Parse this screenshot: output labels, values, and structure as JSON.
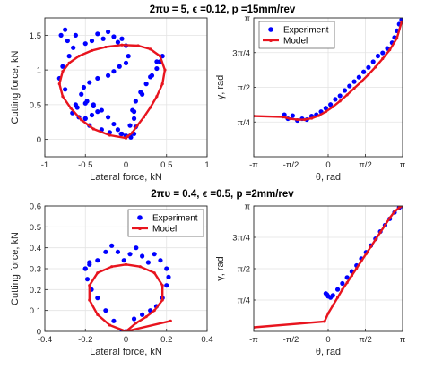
{
  "colors": {
    "experiment": "#0000ff",
    "model": "#e8141e",
    "grid": "#e3e3e3",
    "axis": "#262626"
  },
  "titles": [
    "2πυ = 5,  ϵ =0.12,  p =15mm/rev",
    "2πυ = 0.4,  ϵ =0.5,  p =2mm/rev"
  ],
  "chart_data": [
    {
      "type": "line",
      "xlabel": "Lateral force, kN",
      "ylabel": "Cutting force, kN",
      "xlim": [
        -1,
        1
      ],
      "ylim": [
        -0.25,
        1.75
      ],
      "xticks": [
        -1,
        -0.5,
        0,
        0.5,
        1
      ],
      "xticklabels": [
        "-1",
        "-0.5",
        "0",
        "0.5",
        "1"
      ],
      "yticks": [
        0,
        0.5,
        1,
        1.5
      ],
      "yticklabels": [
        "0",
        "0.5",
        "1",
        "1.5"
      ],
      "grid": true,
      "legend": null,
      "series": [
        {
          "name": "Experiment",
          "style": "dots",
          "x": [
            0.05,
            -0.05,
            -0.2,
            -0.3,
            -0.45,
            -0.5,
            -0.62,
            -0.75,
            -0.82,
            -0.78,
            -0.7,
            -0.65,
            -0.72,
            -0.8,
            -0.75,
            -0.62,
            -0.5,
            -0.42,
            -0.35,
            -0.28,
            -0.22,
            -0.15,
            -0.1,
            -0.05,
            0.0,
            0.03,
            0.0,
            -0.08,
            -0.15,
            -0.22,
            -0.35,
            -0.45,
            -0.52,
            -0.55,
            -0.48,
            -0.4,
            -0.35,
            -0.42,
            -0.5,
            -0.58,
            -0.66,
            -0.6,
            -0.5,
            -0.4,
            -0.3,
            -0.22,
            -0.15,
            -0.1,
            -0.06,
            0.0,
            0.06,
            0.1,
            0.12,
            0.1,
            0.08,
            0.12,
            0.18,
            0.25,
            0.32,
            0.38,
            0.42,
            0.45,
            0.38,
            0.3,
            0.2,
            0.1,
            0.05,
            0.0
          ],
          "y": [
            0.05,
            0.08,
            0.1,
            0.14,
            0.2,
            0.3,
            0.5,
            0.72,
            0.88,
            1.05,
            1.2,
            1.32,
            1.42,
            1.5,
            1.58,
            1.5,
            1.38,
            1.42,
            1.52,
            1.45,
            1.55,
            1.48,
            1.4,
            1.45,
            1.35,
            1.2,
            1.1,
            1.05,
            0.98,
            0.92,
            0.88,
            0.82,
            0.75,
            0.65,
            0.55,
            0.48,
            0.4,
            0.35,
            0.3,
            0.32,
            0.38,
            0.46,
            0.52,
            0.5,
            0.42,
            0.32,
            0.22,
            0.14,
            0.08,
            0.05,
            0.03,
            0.08,
            0.18,
            0.3,
            0.42,
            0.55,
            0.68,
            0.8,
            0.92,
            1.02,
            1.12,
            1.2,
            1.12,
            0.9,
            0.65,
            0.4,
            0.2,
            0.05
          ]
        },
        {
          "name": "Model",
          "style": "line",
          "x": [
            0.0,
            -0.2,
            -0.4,
            -0.55,
            -0.68,
            -0.78,
            -0.82,
            -0.78,
            -0.7,
            -0.58,
            -0.42,
            -0.25,
            -0.05,
            0.15,
            0.3,
            0.42,
            0.48,
            0.45,
            0.38,
            0.3,
            0.22,
            0.14,
            0.08,
            0.02,
            0.0
          ],
          "y": [
            0.02,
            0.06,
            0.15,
            0.28,
            0.45,
            0.62,
            0.8,
            0.98,
            1.1,
            1.2,
            1.28,
            1.33,
            1.36,
            1.35,
            1.3,
            1.2,
            1.0,
            0.8,
            0.62,
            0.46,
            0.32,
            0.2,
            0.1,
            0.04,
            0.02
          ]
        }
      ]
    },
    {
      "type": "line",
      "xlabel": "θ, rad",
      "ylabel": "γ, rad",
      "xlim": [
        -3.1416,
        3.1416
      ],
      "ylim": [
        0,
        3.1416
      ],
      "xticks": [
        -3.1416,
        -1.5708,
        0,
        1.5708,
        3.1416
      ],
      "xticklabels": [
        "-π",
        "-π/2",
        "0",
        "π/2",
        "π"
      ],
      "yticks": [
        0.7854,
        1.5708,
        2.3562,
        3.1416
      ],
      "yticklabels": [
        "π/4",
        "π/2",
        "3π/4",
        "π"
      ],
      "grid": true,
      "legend": "top-left",
      "series": [
        {
          "name": "Experiment",
          "style": "dots",
          "x": [
            -1.85,
            -1.7,
            -1.5,
            -1.3,
            -1.1,
            -0.9,
            -0.7,
            -0.5,
            -0.3,
            -0.1,
            0.1,
            0.3,
            0.5,
            0.7,
            0.9,
            1.1,
            1.3,
            1.5,
            1.7,
            1.9,
            2.1,
            2.3,
            2.5,
            2.7,
            2.8,
            2.9,
            3.0,
            3.1
          ],
          "y": [
            0.95,
            0.86,
            0.93,
            0.82,
            0.86,
            0.84,
            0.92,
            0.95,
            1.02,
            1.1,
            1.18,
            1.3,
            1.38,
            1.5,
            1.6,
            1.7,
            1.8,
            1.92,
            2.02,
            2.15,
            2.28,
            2.35,
            2.45,
            2.58,
            2.7,
            2.85,
            3.0,
            3.1
          ]
        },
        {
          "name": "Model",
          "style": "line",
          "x": [
            -3.1416,
            -1.9,
            -1.6,
            -1.3,
            -1.0,
            -0.7,
            -0.4,
            -0.1,
            0.2,
            0.5,
            0.8,
            1.1,
            1.4,
            1.7,
            2.0,
            2.3,
            2.6,
            2.9,
            3.1
          ],
          "y": [
            0.92,
            0.9,
            0.86,
            0.84,
            0.84,
            0.87,
            0.93,
            1.02,
            1.13,
            1.26,
            1.4,
            1.55,
            1.7,
            1.86,
            2.03,
            2.22,
            2.42,
            2.68,
            3.05
          ]
        }
      ]
    },
    {
      "type": "line",
      "xlabel": "Lateral force, kN",
      "ylabel": "Cutting force, kN",
      "xlim": [
        -0.4,
        0.4
      ],
      "ylim": [
        0,
        0.6
      ],
      "xticks": [
        -0.4,
        -0.2,
        0,
        0.2,
        0.4
      ],
      "xticklabels": [
        "-0.4",
        "-0.2",
        "0",
        "0.2",
        "0.4"
      ],
      "yticks": [
        0,
        0.1,
        0.2,
        0.3,
        0.4,
        0.5,
        0.6
      ],
      "yticklabels": [
        "0",
        "0.1",
        "0.2",
        "0.3",
        "0.4",
        "0.5",
        "0.6"
      ],
      "grid": true,
      "legend": "top-right",
      "series": [
        {
          "name": "Experiment",
          "style": "dots",
          "x": [
            -0.02,
            -0.06,
            -0.1,
            -0.14,
            -0.17,
            -0.19,
            -0.2,
            -0.18,
            -0.2,
            -0.18,
            -0.14,
            -0.1,
            -0.07,
            -0.04,
            -0.01,
            0.02,
            0.05,
            0.08,
            0.11,
            0.14,
            0.17,
            0.2,
            0.21,
            0.2,
            0.18,
            0.15,
            0.12,
            0.08,
            0.04,
            0.0
          ],
          "y": [
            0.0,
            0.05,
            0.1,
            0.16,
            0.2,
            0.25,
            0.3,
            0.33,
            0.3,
            0.32,
            0.34,
            0.38,
            0.41,
            0.38,
            0.34,
            0.37,
            0.4,
            0.36,
            0.33,
            0.37,
            0.34,
            0.3,
            0.26,
            0.22,
            0.16,
            0.12,
            0.1,
            0.08,
            0.06,
            0.0
          ]
        },
        {
          "name": "Model",
          "style": "line",
          "x": [
            0.0,
            -0.08,
            -0.14,
            -0.18,
            -0.18,
            -0.14,
            -0.07,
            0.0,
            0.07,
            0.14,
            0.18,
            0.18,
            0.14,
            0.1,
            0.05,
            0.0,
            0.22
          ],
          "y": [
            0.0,
            0.03,
            0.08,
            0.15,
            0.22,
            0.28,
            0.31,
            0.32,
            0.31,
            0.28,
            0.22,
            0.15,
            0.1,
            0.07,
            0.04,
            0.0,
            0.05
          ]
        }
      ]
    },
    {
      "type": "line",
      "xlabel": "θ, rad",
      "ylabel": "γ, rad",
      "xlim": [
        -3.1416,
        3.1416
      ],
      "ylim": [
        0,
        3.1416
      ],
      "xticks": [
        -3.1416,
        -1.5708,
        0,
        1.5708,
        3.1416
      ],
      "xticklabels": [
        "-π",
        "-π/2",
        "0",
        "π/2",
        "π"
      ],
      "yticks": [
        0.7854,
        1.5708,
        2.3562,
        3.1416
      ],
      "yticklabels": [
        "π/4",
        "π/2",
        "3π/4",
        "π"
      ],
      "grid": true,
      "legend": null,
      "series": [
        {
          "name": "Experiment",
          "style": "dots",
          "x": [
            -0.1,
            -0.05,
            0.0,
            0.1,
            0.2,
            0.4,
            0.6,
            0.8,
            1.0,
            1.2,
            1.4,
            1.6,
            1.8,
            2.0,
            2.2,
            2.4,
            2.6,
            2.8,
            3.0,
            3.1
          ],
          "y": [
            0.95,
            0.92,
            0.88,
            0.85,
            0.9,
            1.05,
            1.2,
            1.35,
            1.5,
            1.65,
            1.82,
            1.98,
            2.15,
            2.32,
            2.5,
            2.66,
            2.82,
            2.98,
            3.1,
            3.14
          ]
        },
        {
          "name": "Model",
          "style": "line",
          "x": [
            -3.1416,
            -0.15,
            0.0,
            0.2,
            0.4,
            0.6,
            0.8,
            1.0,
            1.2,
            1.4,
            1.6,
            1.8,
            2.0,
            2.2,
            2.4,
            2.6,
            2.8,
            3.0,
            3.1
          ],
          "y": [
            0.1,
            0.25,
            0.45,
            0.65,
            0.85,
            1.05,
            1.22,
            1.4,
            1.58,
            1.76,
            1.94,
            2.12,
            2.3,
            2.48,
            2.66,
            2.84,
            3.0,
            3.1,
            3.14
          ]
        }
      ]
    }
  ]
}
